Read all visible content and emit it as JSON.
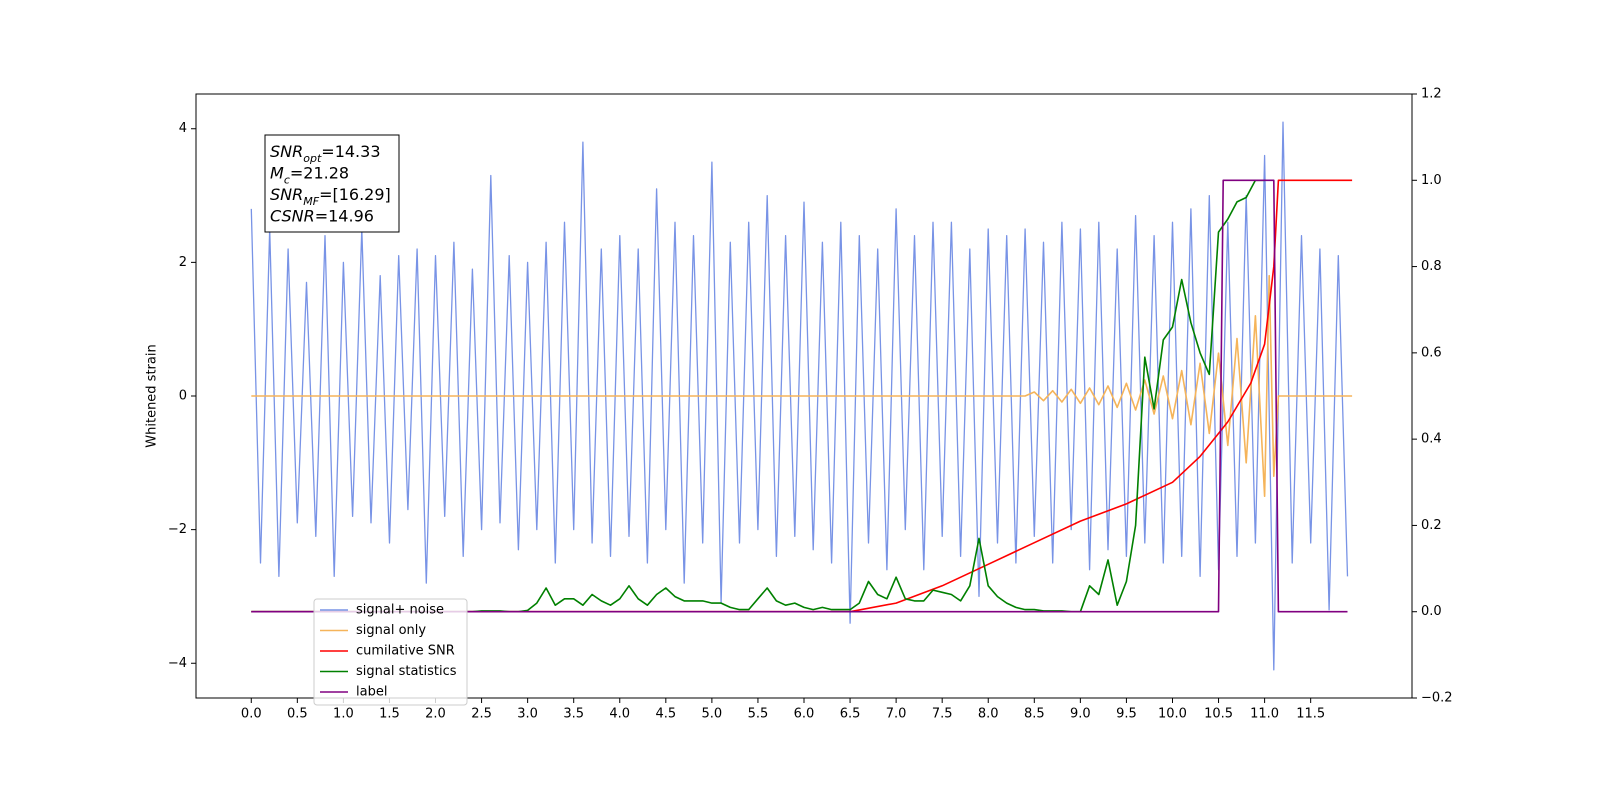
{
  "chart_data": {
    "type": "line",
    "ylabel": "Whitened strain",
    "x": [
      0.0,
      0.1,
      0.2,
      0.3,
      0.4,
      0.5,
      0.6,
      0.7,
      0.8,
      0.9,
      1.0,
      1.1,
      1.2,
      1.3,
      1.4,
      1.5,
      1.6,
      1.7,
      1.8,
      1.9,
      2.0,
      2.1,
      2.2,
      2.3,
      2.4,
      2.5,
      2.6,
      2.7,
      2.8,
      2.9,
      3.0,
      3.1,
      3.2,
      3.3,
      3.4,
      3.5,
      3.6,
      3.7,
      3.8,
      3.9,
      4.0,
      4.1,
      4.2,
      4.3,
      4.4,
      4.5,
      4.6,
      4.7,
      4.8,
      4.9,
      5.0,
      5.1,
      5.2,
      5.3,
      5.4,
      5.5,
      5.6,
      5.7,
      5.8,
      5.9,
      6.0,
      6.1,
      6.2,
      6.3,
      6.4,
      6.5,
      6.6,
      6.7,
      6.8,
      6.9,
      7.0,
      7.1,
      7.2,
      7.3,
      7.4,
      7.5,
      7.6,
      7.7,
      7.8,
      7.9,
      8.0,
      8.1,
      8.2,
      8.3,
      8.4,
      8.5,
      8.6,
      8.7,
      8.8,
      8.9,
      9.0,
      9.1,
      9.2,
      9.3,
      9.4,
      9.5,
      9.6,
      9.7,
      9.8,
      9.9,
      10.0,
      10.1,
      10.2,
      10.3,
      10.4,
      10.5,
      10.6,
      10.7,
      10.8,
      10.9,
      11.0,
      11.1,
      11.2,
      11.3,
      11.4,
      11.5,
      11.6,
      11.7,
      11.8,
      11.9
    ],
    "series": [
      {
        "name": "signal+ noise",
        "color": "#7893e6",
        "values": [
          2.8,
          -2.5,
          2.5,
          -2.7,
          2.2,
          -1.9,
          1.7,
          -2.1,
          2.4,
          -2.7,
          2.0,
          -1.8,
          2.5,
          -1.9,
          1.8,
          -2.2,
          2.1,
          -1.7,
          2.2,
          -2.8,
          2.1,
          -1.8,
          2.3,
          -2.4,
          1.9,
          -2.0,
          3.3,
          -1.9,
          2.1,
          -2.3,
          2.0,
          -2.0,
          2.3,
          -2.5,
          2.6,
          -2.0,
          3.8,
          -2.2,
          2.2,
          -2.4,
          2.4,
          -2.1,
          2.2,
          -2.5,
          3.1,
          -2.0,
          2.6,
          -2.8,
          2.4,
          -2.2,
          3.5,
          -3.1,
          2.3,
          -2.2,
          2.6,
          -2.0,
          3.0,
          -2.4,
          2.4,
          -2.1,
          2.9,
          -2.3,
          2.3,
          -2.5,
          2.6,
          -3.4,
          2.4,
          -2.2,
          2.2,
          -2.6,
          2.8,
          -2.0,
          2.4,
          -2.6,
          2.6,
          -2.1,
          2.6,
          -2.4,
          2.2,
          -3.0,
          2.5,
          -2.2,
          2.4,
          -2.5,
          2.5,
          -2.1,
          2.3,
          -2.5,
          2.6,
          -2.0,
          2.5,
          -2.6,
          2.6,
          -2.3,
          2.2,
          -2.4,
          2.7,
          -2.2,
          2.4,
          -2.5,
          2.6,
          -2.4,
          2.8,
          -2.7,
          3.0,
          -2.6,
          2.6,
          -2.4,
          3.0,
          -2.2,
          3.6,
          -4.1,
          4.1,
          -2.5,
          2.4,
          -2.2,
          2.2,
          -3.2,
          2.1,
          -2.7
        ]
      },
      {
        "name": "signal only",
        "color": "#f5b45a",
        "x": [
          0,
          8.4,
          8.5,
          8.6,
          8.7,
          8.8,
          8.9,
          9.0,
          9.1,
          9.2,
          9.3,
          9.4,
          9.5,
          9.6,
          9.7,
          9.8,
          9.9,
          10.0,
          10.1,
          10.2,
          10.3,
          10.4,
          10.5,
          10.6,
          10.7,
          10.8,
          10.9,
          11.0,
          11.05,
          11.1,
          11.15,
          11.95
        ],
        "values": [
          0,
          0,
          0.06,
          -0.07,
          0.08,
          -0.09,
          0.1,
          -0.11,
          0.12,
          -0.13,
          0.15,
          -0.17,
          0.19,
          -0.21,
          0.24,
          -0.27,
          0.3,
          -0.34,
          0.38,
          -0.43,
          0.49,
          -0.56,
          0.64,
          -0.74,
          0.86,
          -1.0,
          1.2,
          -1.5,
          1.8,
          -1.2,
          0,
          0
        ]
      },
      {
        "name": "cumilative SNR",
        "color": "#ff0000",
        "axis": "y2",
        "x": [
          0,
          6.5,
          7.0,
          7.5,
          8.0,
          8.5,
          9.0,
          9.5,
          10.0,
          10.3,
          10.6,
          10.85,
          11.0,
          11.1,
          11.15,
          11.95
        ],
        "values": [
          0,
          0,
          0.02,
          0.06,
          0.11,
          0.16,
          0.21,
          0.25,
          0.3,
          0.36,
          0.44,
          0.53,
          0.62,
          0.8,
          1.0,
          1.0
        ]
      },
      {
        "name": "signal statistics",
        "color": "#008000",
        "axis": "y2",
        "values": [
          0,
          0,
          0,
          0,
          0,
          0,
          0,
          0,
          0,
          0,
          0,
          0,
          0,
          0,
          0,
          0,
          0,
          0,
          0,
          0,
          0,
          0,
          0,
          0,
          0,
          0.002,
          0.002,
          0.002,
          0,
          0,
          0.003,
          0.02,
          0.055,
          0.015,
          0.03,
          0.03,
          0.015,
          0.04,
          0.025,
          0.015,
          0.03,
          0.06,
          0.03,
          0.015,
          0.04,
          0.055,
          0.035,
          0.025,
          0.025,
          0.025,
          0.02,
          0.02,
          0.01,
          0.005,
          0.005,
          0.03,
          0.055,
          0.025,
          0.015,
          0.02,
          0.01,
          0.005,
          0.01,
          0.005,
          0.005,
          0.005,
          0.02,
          0.07,
          0.04,
          0.03,
          0.08,
          0.03,
          0.025,
          0.025,
          0.05,
          0.045,
          0.04,
          0.025,
          0.06,
          0.17,
          0.06,
          0.035,
          0.02,
          0.01,
          0.005,
          0.005,
          0.002,
          0.002,
          0.002,
          0,
          0,
          0.06,
          0.04,
          0.12,
          0.015,
          0.07,
          0.2,
          0.59,
          0.47,
          0.63,
          0.66,
          0.77,
          0.67,
          0.6,
          0.55,
          0.88,
          0.91,
          0.95,
          0.96,
          1.0,
          1.0,
          null,
          null,
          null,
          null,
          null,
          null,
          null,
          null,
          null
        ]
      },
      {
        "name": "label",
        "color": "#800080",
        "axis": "y2",
        "x": [
          0,
          10.5,
          10.55,
          11.1,
          11.15,
          11.9
        ],
        "values": [
          0,
          0,
          1,
          1,
          0,
          0
        ]
      }
    ],
    "annotations": [
      {
        "text": "SNR",
        "sub": "opt",
        "rest": "=14.33"
      },
      {
        "text": "M",
        "sub": "c",
        "rest": "=21.28"
      },
      {
        "text": "SNR",
        "sub": "MF",
        "rest": "=[16.29]"
      },
      {
        "text": "CSNR",
        "sub": "",
        "rest": "=14.96"
      }
    ],
    "xlim": [
      -0.6,
      12.6
    ],
    "xticks": [
      {
        "value": 0,
        "label": "0.0"
      },
      0.5,
      {
        "value": 1,
        "label": "1.0"
      },
      1.5,
      {
        "value": 2,
        "label": "2.0"
      },
      2.5,
      {
        "value": 3,
        "label": "3.0"
      },
      3.5,
      {
        "value": 4,
        "label": "4.0"
      },
      4.5,
      {
        "value": 5,
        "label": "5.0"
      },
      5.5,
      {
        "value": 6,
        "label": "6.0"
      },
      6.5,
      {
        "value": 7,
        "label": "7.0"
      },
      7.5,
      {
        "value": 8,
        "label": "8.0"
      },
      8.5,
      {
        "value": 9,
        "label": "9.0"
      },
      9.5,
      {
        "value": 10,
        "label": "10.0"
      },
      10.5,
      {
        "value": 11,
        "label": "11.0"
      },
      11.5
    ],
    "ylim": [
      -4.52,
      4.52
    ],
    "yticks": [
      {
        "value": -4,
        "label": "−4"
      },
      {
        "value": -2,
        "label": "−2"
      },
      0,
      2,
      4
    ],
    "y2lim": [
      -0.2,
      1.2
    ],
    "y2ticks": [
      {
        "value": -0.2,
        "label": "−0.2"
      },
      {
        "value": 0,
        "label": "0.0"
      },
      0.2,
      0.4,
      0.6,
      0.8,
      {
        "value": 1,
        "label": "1.0"
      },
      1.2
    ],
    "legend": "lower left"
  }
}
